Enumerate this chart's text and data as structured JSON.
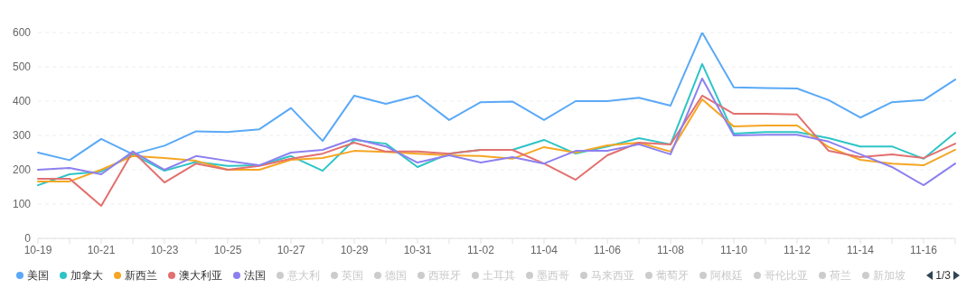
{
  "chart_data": {
    "type": "line",
    "categories": [
      "10-19",
      null,
      "10-21",
      null,
      "10-23",
      null,
      "10-25",
      null,
      "10-27",
      null,
      "10-29",
      null,
      "10-31",
      null,
      "11-02",
      null,
      "11-04",
      null,
      "11-06",
      null,
      "11-08",
      null,
      "11-10",
      null,
      "11-12",
      null,
      "11-14",
      null,
      "11-16",
      null
    ],
    "series": [
      {
        "name": "美国",
        "color": "#5aa9f7",
        "values": [
          250,
          228,
          290,
          245,
          270,
          312,
          310,
          318,
          380,
          284,
          416,
          392,
          416,
          345,
          397,
          399,
          345,
          400,
          400,
          410,
          387,
          600,
          440,
          438,
          437,
          403,
          352,
          397,
          403,
          463
        ]
      },
      {
        "name": "加拿大",
        "color": "#2ec4c6",
        "values": [
          155,
          187,
          195,
          245,
          197,
          223,
          211,
          213,
          240,
          197,
          287,
          276,
          208,
          247,
          258,
          258,
          287,
          247,
          268,
          292,
          274,
          508,
          305,
          310,
          310,
          292,
          268,
          268,
          232,
          308
        ]
      },
      {
        "name": "新西兰",
        "color": "#f5a623",
        "values": [
          166,
          166,
          200,
          240,
          234,
          226,
          200,
          200,
          229,
          234,
          255,
          252,
          247,
          242,
          240,
          232,
          266,
          250,
          271,
          279,
          253,
          405,
          326,
          329,
          329,
          266,
          229,
          218,
          213,
          258
        ]
      },
      {
        "name": "澳大利亚",
        "color": "#e2706f",
        "values": [
          174,
          174,
          95,
          253,
          163,
          218,
          200,
          211,
          232,
          247,
          279,
          253,
          253,
          247,
          258,
          258,
          218,
          171,
          242,
          279,
          274,
          416,
          363,
          363,
          361,
          255,
          237,
          245,
          234,
          276
        ]
      },
      {
        "name": "法国",
        "color": "#8c80f0",
        "values": [
          200,
          205,
          187,
          253,
          200,
          240,
          226,
          213,
          250,
          258,
          290,
          268,
          221,
          242,
          221,
          237,
          218,
          255,
          255,
          274,
          245,
          466,
          300,
          302,
          302,
          282,
          245,
          208,
          155,
          218
        ]
      },
      {
        "name": "意大利",
        "color": "#cccccc",
        "values": [
          null,
          null,
          null,
          null,
          null,
          null,
          null,
          null,
          null,
          null,
          null,
          null,
          null,
          null,
          null,
          null,
          null,
          null,
          null,
          null,
          null,
          null,
          null,
          null,
          null,
          null,
          null,
          null,
          null,
          null
        ]
      },
      {
        "name": "英国",
        "color": "#cccccc",
        "values": [
          null,
          null,
          null,
          null,
          null,
          null,
          null,
          null,
          null,
          null,
          null,
          null,
          null,
          null,
          null,
          null,
          null,
          null,
          null,
          null,
          null,
          null,
          null,
          null,
          null,
          null,
          null,
          null,
          null,
          null
        ]
      },
      {
        "name": "德国",
        "color": "#cccccc",
        "values": [
          null,
          null,
          null,
          null,
          null,
          null,
          null,
          null,
          null,
          null,
          null,
          null,
          null,
          null,
          null,
          null,
          null,
          null,
          null,
          null,
          null,
          null,
          null,
          null,
          null,
          null,
          null,
          null,
          null,
          null
        ]
      },
      {
        "name": "西班牙",
        "color": "#cccccc",
        "values": [
          null,
          null,
          null,
          null,
          null,
          null,
          null,
          null,
          null,
          null,
          null,
          null,
          null,
          null,
          null,
          null,
          null,
          null,
          null,
          null,
          null,
          null,
          null,
          null,
          null,
          null,
          null,
          null,
          null,
          null
        ]
      },
      {
        "name": "土耳其",
        "color": "#cccccc",
        "values": [
          null,
          null,
          null,
          null,
          null,
          null,
          null,
          null,
          null,
          null,
          null,
          null,
          null,
          null,
          null,
          null,
          null,
          null,
          null,
          null,
          null,
          null,
          null,
          null,
          null,
          null,
          null,
          null,
          null,
          null
        ]
      },
      {
        "name": "墨西哥",
        "color": "#cccccc",
        "values": [
          null,
          null,
          null,
          null,
          null,
          null,
          null,
          null,
          null,
          null,
          null,
          null,
          null,
          null,
          null,
          null,
          null,
          null,
          null,
          null,
          null,
          null,
          null,
          null,
          null,
          null,
          null,
          null,
          null,
          null
        ]
      },
      {
        "name": "马来西亚",
        "color": "#cccccc",
        "values": [
          null,
          null,
          null,
          null,
          null,
          null,
          null,
          null,
          null,
          null,
          null,
          null,
          null,
          null,
          null,
          null,
          null,
          null,
          null,
          null,
          null,
          null,
          null,
          null,
          null,
          null,
          null,
          null,
          null,
          null
        ]
      },
      {
        "name": "葡萄牙",
        "color": "#cccccc",
        "values": [
          null,
          null,
          null,
          null,
          null,
          null,
          null,
          null,
          null,
          null,
          null,
          null,
          null,
          null,
          null,
          null,
          null,
          null,
          null,
          null,
          null,
          null,
          null,
          null,
          null,
          null,
          null,
          null,
          null,
          null
        ]
      },
      {
        "name": "阿根廷",
        "color": "#cccccc",
        "values": [
          null,
          null,
          null,
          null,
          null,
          null,
          null,
          null,
          null,
          null,
          null,
          null,
          null,
          null,
          null,
          null,
          null,
          null,
          null,
          null,
          null,
          null,
          null,
          null,
          null,
          null,
          null,
          null,
          null,
          null
        ]
      },
      {
        "name": "哥伦比亚",
        "color": "#cccccc",
        "values": [
          null,
          null,
          null,
          null,
          null,
          null,
          null,
          null,
          null,
          null,
          null,
          null,
          null,
          null,
          null,
          null,
          null,
          null,
          null,
          null,
          null,
          null,
          null,
          null,
          null,
          null,
          null,
          null,
          null,
          null
        ]
      },
      {
        "name": "荷兰",
        "color": "#cccccc",
        "values": [
          null,
          null,
          null,
          null,
          null,
          null,
          null,
          null,
          null,
          null,
          null,
          null,
          null,
          null,
          null,
          null,
          null,
          null,
          null,
          null,
          null,
          null,
          null,
          null,
          null,
          null,
          null,
          null,
          null,
          null
        ]
      },
      {
        "name": "新加坡",
        "color": "#cccccc",
        "values": [
          null,
          null,
          null,
          null,
          null,
          null,
          null,
          null,
          null,
          null,
          null,
          null,
          null,
          null,
          null,
          null,
          null,
          null,
          null,
          null,
          null,
          null,
          null,
          null,
          null,
          null,
          null,
          null,
          null,
          null
        ]
      }
    ],
    "ylim": [
      0,
      600
    ],
    "yticks": [
      0,
      100,
      200,
      300,
      400,
      500,
      600
    ],
    "grid": "y",
    "legend": "bottom",
    "marker": "none",
    "line_style": "solid",
    "annotations": [
      "1/3"
    ]
  }
}
